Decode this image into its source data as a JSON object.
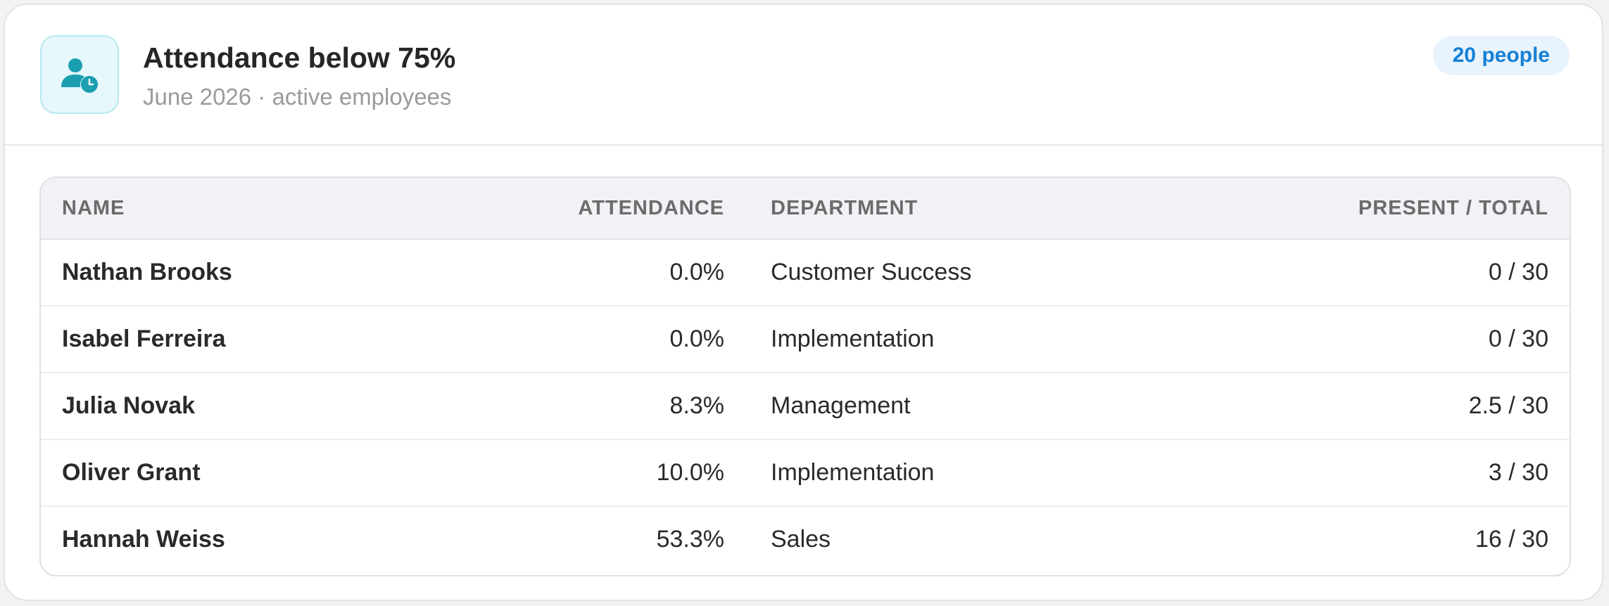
{
  "header": {
    "icon": "user-clock-icon",
    "title": "Attendance below 75%",
    "subtitle": "June 2026 · active employees",
    "badge": "20 people"
  },
  "table": {
    "columns": {
      "name": "NAME",
      "attendance": "ATTENDANCE",
      "department": "DEPARTMENT",
      "present_total": "PRESENT / TOTAL"
    },
    "rows": [
      {
        "name": "Nathan Brooks",
        "attendance": "0.0%",
        "department": "Customer Success",
        "present_total": "0 / 30"
      },
      {
        "name": "Isabel Ferreira",
        "attendance": "0.0%",
        "department": "Implementation",
        "present_total": "0 / 30"
      },
      {
        "name": "Julia Novak",
        "attendance": "8.3%",
        "department": "Management",
        "present_total": "2.5 / 30"
      },
      {
        "name": "Oliver Grant",
        "attendance": "10.0%",
        "department": "Implementation",
        "present_total": "3 / 30"
      },
      {
        "name": "Hannah Weiss",
        "attendance": "53.3%",
        "department": "Sales",
        "present_total": "16 / 30"
      }
    ]
  },
  "colors": {
    "accent": "#1a9fb0",
    "badge_text": "#1580d6",
    "badge_bg": "#e8f3fd"
  }
}
